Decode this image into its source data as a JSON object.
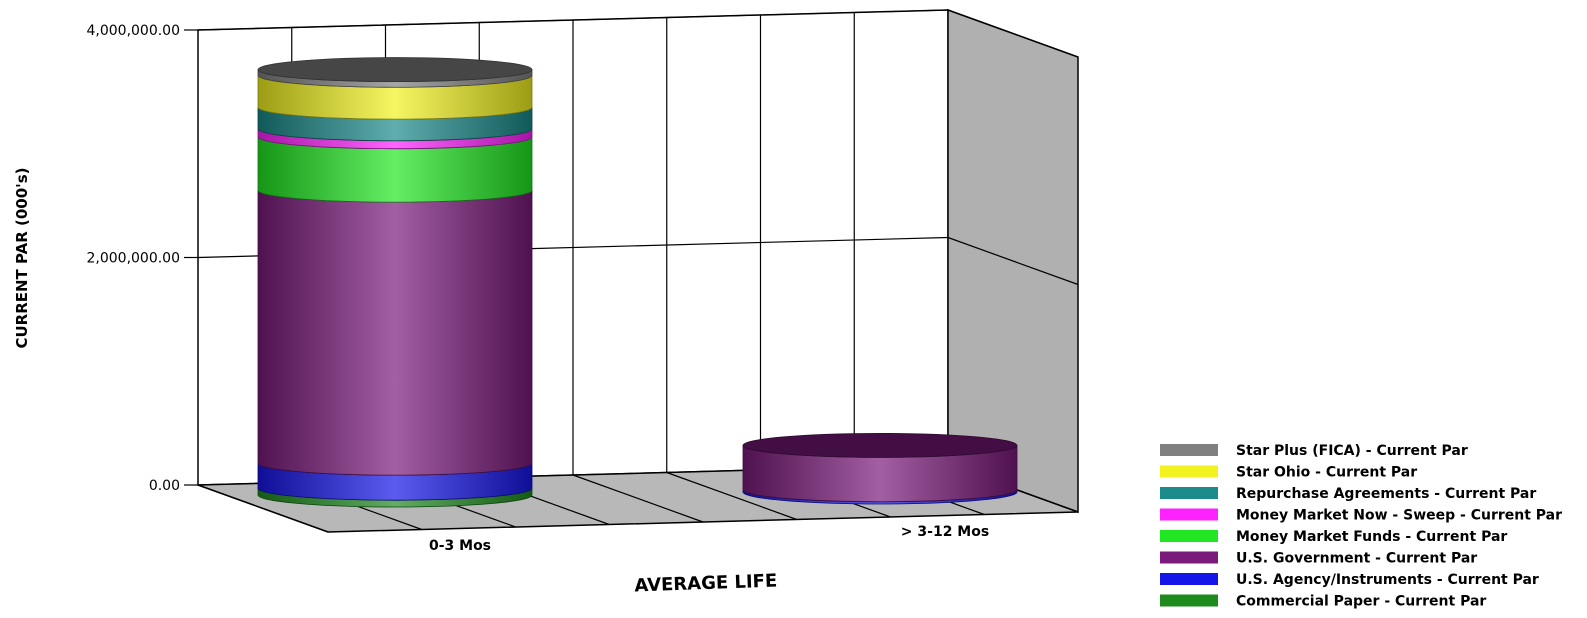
{
  "chart_data": {
    "type": "bar",
    "stacked": true,
    "style": "3d-cylinder",
    "ylabel": "CURRENT PAR (000's)",
    "xlabel": "AVERAGE LIFE",
    "ylim": [
      0,
      4000000
    ],
    "yticks": [
      "0.00",
      "2,000,000.00",
      "4,000,000.00"
    ],
    "yticks_values": [
      0,
      2000000,
      4000000
    ],
    "categories": [
      "0-3 Mos",
      "> 3-12 Mos"
    ],
    "legend_position": "bottom-right",
    "grid": true,
    "series": [
      {
        "name": "Commercial Paper - Current Par",
        "color": "#1e8a1e",
        "values": [
          60000,
          0
        ]
      },
      {
        "name": "U.S. Agency/Instruments - Current Par",
        "color": "#1515e8",
        "values": [
          220000,
          20000
        ]
      },
      {
        "name": "U.S. Government - Current Par",
        "color": "#7a1a7a",
        "values": [
          2400000,
          390000
        ]
      },
      {
        "name": "Money Market Funds - Current Par",
        "color": "#22e622",
        "values": [
          470000,
          0
        ]
      },
      {
        "name": "Money Market Now - Sweep - Current Par",
        "color": "#ff22ff",
        "values": [
          70000,
          0
        ]
      },
      {
        "name": "Repurchase Agreements - Current Par",
        "color": "#1a8a8a",
        "values": [
          190000,
          0
        ]
      },
      {
        "name": "Star Ohio - Current Par",
        "color": "#f2f220",
        "values": [
          280000,
          0
        ]
      },
      {
        "name": "Star Plus (FICA) - Current Par",
        "color": "#808080",
        "values": [
          50000,
          0
        ]
      }
    ]
  }
}
